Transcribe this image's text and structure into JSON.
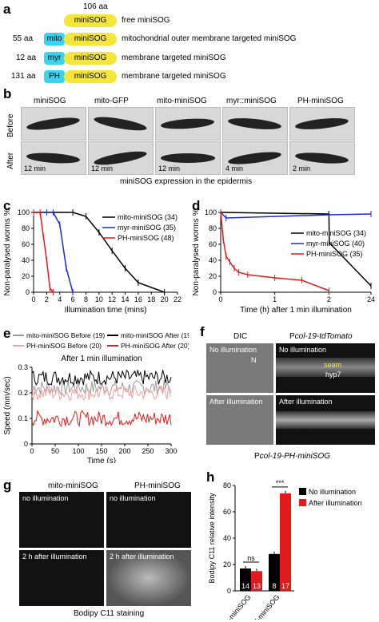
{
  "panel_a": {
    "label": "a",
    "top_size": "106 aa",
    "rows": [
      {
        "prefix_size": "",
        "tag": "",
        "core": "miniSOG",
        "desc": "free miniSOG"
      },
      {
        "prefix_size": "55 aa",
        "tag": "mito",
        "core": "miniSOG",
        "desc": "mitochondrial outer membrane targeted miniSOG"
      },
      {
        "prefix_size": "12 aa",
        "tag": "myr",
        "core": "miniSOG",
        "desc": "membrane targeted miniSOG"
      },
      {
        "prefix_size": "131 aa",
        "tag": "PH",
        "core": "miniSOG",
        "desc": "membrane targeted miniSOG"
      }
    ]
  },
  "panel_b": {
    "label": "b",
    "row_before": "Before",
    "row_after": "After",
    "columns": [
      "miniSOG",
      "mito-GFP",
      "mito-miniSOG",
      "myr::miniSOG",
      "PH-miniSOG"
    ],
    "after_times": [
      "12 min",
      "12 min",
      "12 min",
      "4 min",
      "2 min"
    ],
    "caption": "miniSOG expression in the epidermis"
  },
  "panel_c": {
    "label": "c",
    "chart_data": {
      "type": "line",
      "xlabel": "Illumination time (mins)",
      "ylabel": "Non-paralysed worms %",
      "xlim": [
        0,
        22
      ],
      "ylim": [
        0,
        100
      ],
      "xticks": [
        0,
        2,
        4,
        6,
        8,
        10,
        12,
        14,
        16,
        18,
        20,
        22
      ],
      "yticks": [
        0,
        20,
        40,
        60,
        80,
        100
      ],
      "series": [
        {
          "name": "mito-miniSOG (34)",
          "color": "#000000",
          "x": [
            0,
            6,
            8,
            10,
            12,
            14,
            16,
            20
          ],
          "y": [
            100,
            100,
            95,
            75,
            52,
            30,
            12,
            0
          ]
        },
        {
          "name": "myr-miniSOG (35)",
          "color": "#1a2bd6",
          "x": [
            0,
            2,
            3,
            4,
            5,
            6
          ],
          "y": [
            100,
            100,
            100,
            85,
            30,
            0
          ]
        },
        {
          "name": "PH-miniSOG (48)",
          "color": "#e31a1c",
          "x": [
            0,
            1,
            1.5,
            2,
            2.5,
            3
          ],
          "y": [
            100,
            100,
            70,
            40,
            5,
            0
          ]
        }
      ]
    }
  },
  "panel_d": {
    "label": "d",
    "chart_data": {
      "type": "line",
      "xlabel": "Time (h) after 1 min illumination",
      "ylabel": "Non-paralysed worms %",
      "ylim": [
        0,
        100
      ],
      "xtick_labels": [
        "0",
        "1",
        "2",
        "24"
      ],
      "yticks": [
        0,
        20,
        40,
        60,
        80,
        100
      ],
      "series": [
        {
          "name": "mito-miniSOG (34)",
          "color": "#000000",
          "x": [
            0,
            2,
            2.2,
            24
          ],
          "y": [
            100,
            98,
            62,
            8
          ]
        },
        {
          "name": "myr-miniSOG (40)",
          "color": "#1a2bd6",
          "x": [
            0,
            0.1,
            2,
            24
          ],
          "y": [
            100,
            93,
            97,
            98
          ]
        },
        {
          "name": "PH-miniSOG (35)",
          "color": "#e31a1c",
          "x": [
            0,
            0.05,
            0.1,
            0.17,
            0.25,
            0.33,
            0.5,
            1,
            1.5,
            2
          ],
          "y": [
            100,
            65,
            45,
            38,
            30,
            25,
            22,
            18,
            15,
            2
          ]
        }
      ]
    }
  },
  "panel_e": {
    "label": "e",
    "title": "After 1 min illumination",
    "chart_data": {
      "type": "line",
      "xlabel": "Time (s)",
      "ylabel": "Speed (mm/sec)",
      "xlim": [
        0,
        300
      ],
      "ylim": [
        0,
        0.3
      ],
      "xticks": [
        0,
        50,
        100,
        150,
        200,
        250,
        300
      ],
      "yticks": [
        0,
        0.1,
        0.2,
        0.3
      ],
      "series": [
        {
          "name": "mito-miniSOG Before (19)",
          "color": "#9a9a9a",
          "level": 0.22
        },
        {
          "name": "mito-miniSOG After (19)",
          "color": "#000000",
          "level": 0.26
        },
        {
          "name": "PH-miniSOG Before (20)",
          "color": "#f4a0a0",
          "level": 0.2
        },
        {
          "name": "PH-miniSOG After (20)",
          "color": "#e31a1c",
          "level": 0.1
        }
      ]
    }
  },
  "panel_f": {
    "label": "f",
    "col_dic": "DIC",
    "col_fluor_prefix": "P",
    "col_fluor_gene": "col-19-tdTomato",
    "tl_text": "No illumination",
    "tl_marker": "N",
    "tr_text": "No illumination",
    "tr_seam": "seam",
    "tr_hyp": "hyp7",
    "bl_text": "After illumination",
    "br_text": "After illumination",
    "caption_prefix": "P",
    "caption_gene": "col-19-PH-miniSOG"
  },
  "panel_g": {
    "label": "g",
    "col1": "mito-miniSOG",
    "col2": "PH-miniSOG",
    "row1_text": "no illumination",
    "row2_text": "2 h after illumination",
    "tr_text": "no illumination",
    "br_text": "2 h after illumination",
    "caption": "Bodipy C11 staining"
  },
  "panel_h": {
    "label": "h",
    "chart_data": {
      "type": "bar",
      "ylabel": "Bodipy C11 relative intensity",
      "ylim": [
        0,
        80
      ],
      "yticks": [
        0,
        20,
        40,
        60,
        80
      ],
      "categories": [
        "mito-miniSOG",
        "PH-miniSOG"
      ],
      "series": [
        {
          "name": "No illumination",
          "color": "#000000",
          "values": [
            17,
            28
          ],
          "n": [
            "14",
            "8"
          ]
        },
        {
          "name": "After illumination",
          "color": "#e31a1c",
          "values": [
            15,
            74
          ],
          "n": [
            "13",
            "17"
          ]
        }
      ],
      "annotations": [
        "ns",
        "***"
      ]
    }
  }
}
